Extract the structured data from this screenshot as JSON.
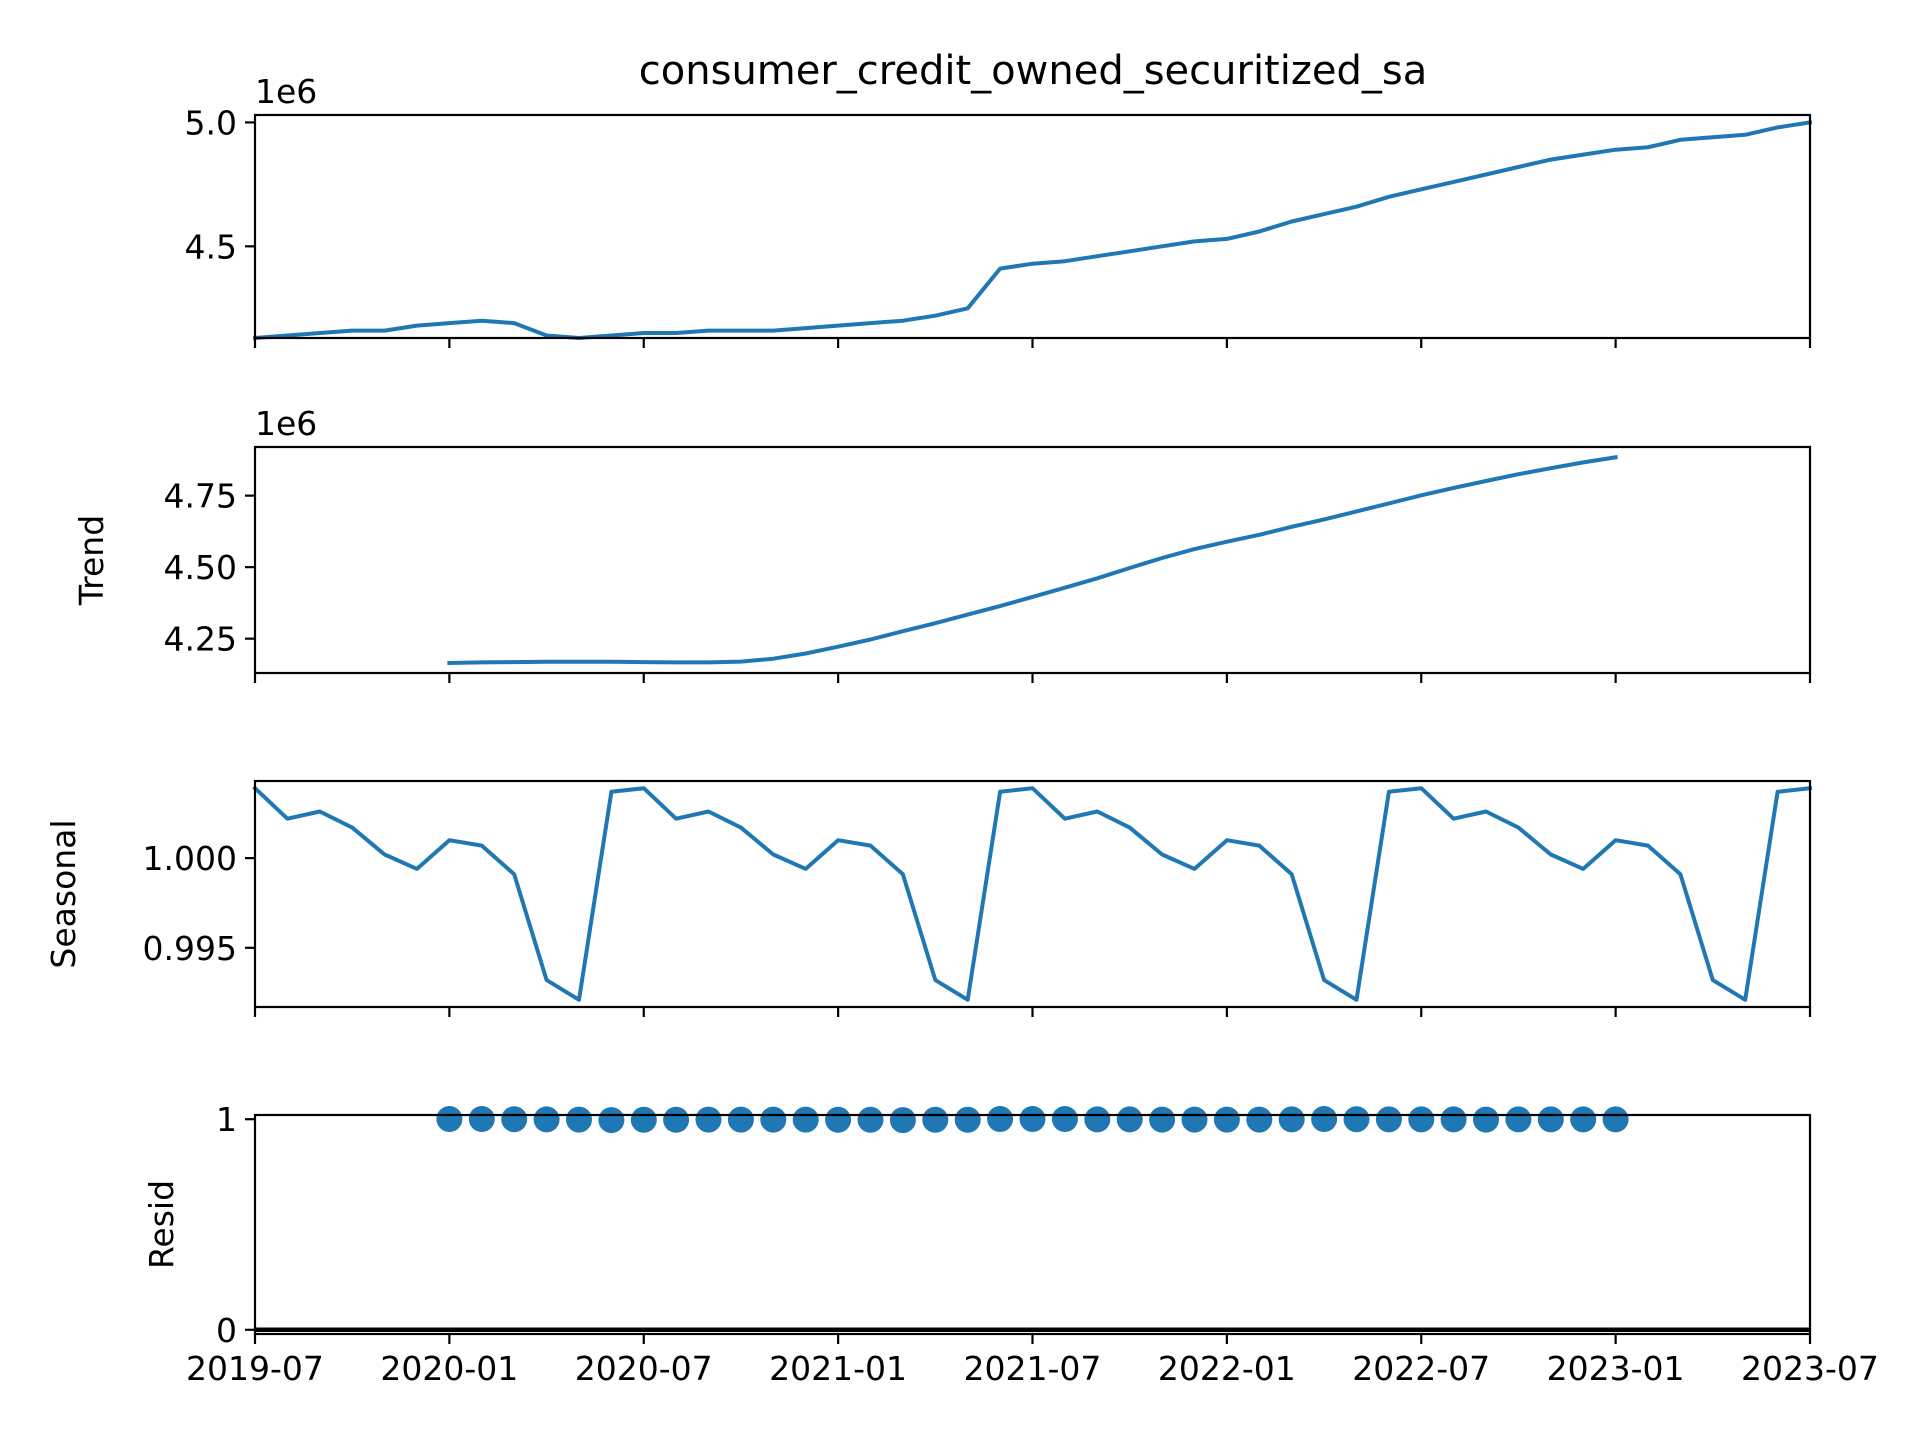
{
  "chart_data": {
    "type": "line",
    "title": "consumer_credit_owned_securitized_sa",
    "color": "#1f77b4",
    "x_range": [
      "2019-07",
      "2023-07"
    ],
    "x_tick_labels": [
      "2019-07",
      "2020-01",
      "2020-07",
      "2021-01",
      "2021-07",
      "2022-01",
      "2022-07",
      "2023-01",
      "2023-07"
    ],
    "x_dates": [
      "2019-07",
      "2019-08",
      "2019-09",
      "2019-10",
      "2019-11",
      "2019-12",
      "2020-01",
      "2020-02",
      "2020-03",
      "2020-04",
      "2020-05",
      "2020-06",
      "2020-07",
      "2020-08",
      "2020-09",
      "2020-10",
      "2020-11",
      "2020-12",
      "2021-01",
      "2021-02",
      "2021-03",
      "2021-04",
      "2021-05",
      "2021-06",
      "2021-07",
      "2021-08",
      "2021-09",
      "2021-10",
      "2021-11",
      "2021-12",
      "2022-01",
      "2022-02",
      "2022-03",
      "2022-04",
      "2022-05",
      "2022-06",
      "2022-07",
      "2022-08",
      "2022-09",
      "2022-10",
      "2022-11",
      "2022-12",
      "2023-01",
      "2023-02",
      "2023-03",
      "2023-04",
      "2023-05",
      "2023-06",
      "2023-07"
    ],
    "panels": [
      {
        "name": "observed",
        "ylabel": "",
        "offset_label": "1e6",
        "ylim": [
          4.13,
          5.03
        ],
        "ytick_values": [
          4.5,
          5.0
        ],
        "ytick_labels": [
          "4.5",
          "5.0"
        ],
        "kind": "line",
        "values": [
          4.13,
          4.14,
          4.15,
          4.16,
          4.16,
          4.18,
          4.19,
          4.2,
          4.19,
          4.14,
          4.13,
          4.14,
          4.15,
          4.15,
          4.16,
          4.16,
          4.16,
          4.17,
          4.18,
          4.19,
          4.2,
          4.22,
          4.25,
          4.41,
          4.43,
          4.44,
          4.46,
          4.48,
          4.5,
          4.52,
          4.53,
          4.56,
          4.6,
          4.63,
          4.66,
          4.7,
          4.73,
          4.76,
          4.79,
          4.82,
          4.85,
          4.87,
          4.89,
          4.9,
          4.93,
          4.94,
          4.95,
          4.98,
          5.0
        ]
      },
      {
        "name": "trend",
        "ylabel": "Trend",
        "offset_label": "1e6",
        "ylim": [
          4.13,
          4.92
        ],
        "ytick_values": [
          4.25,
          4.5,
          4.75
        ],
        "ytick_labels": [
          "4.25",
          "4.50",
          "4.75"
        ],
        "kind": "line",
        "values": [
          null,
          null,
          null,
          null,
          null,
          null,
          4.165,
          4.167,
          4.168,
          4.169,
          4.169,
          4.169,
          4.168,
          4.167,
          4.167,
          4.17,
          4.18,
          4.198,
          4.222,
          4.247,
          4.276,
          4.304,
          4.334,
          4.364,
          4.396,
          4.428,
          4.461,
          4.497,
          4.532,
          4.563,
          4.589,
          4.613,
          4.641,
          4.667,
          4.695,
          4.723,
          4.751,
          4.777,
          4.801,
          4.825,
          4.846,
          4.866,
          4.884,
          null,
          null,
          null,
          null,
          null,
          null
        ]
      },
      {
        "name": "seasonal",
        "ylabel": "Seasonal",
        "offset_label": "",
        "ylim": [
          0.9917,
          1.0043
        ],
        "ytick_values": [
          0.995,
          1.0
        ],
        "ytick_labels": [
          "0.995",
          "1.000"
        ],
        "kind": "line",
        "values": [
          1.0039,
          1.0022,
          1.0026,
          1.0017,
          1.0002,
          0.9994,
          1.001,
          1.0007,
          0.9991,
          0.9932,
          0.9921,
          1.0037,
          1.0039,
          1.0022,
          1.0026,
          1.0017,
          1.0002,
          0.9994,
          1.001,
          1.0007,
          0.9991,
          0.9932,
          0.9921,
          1.0037,
          1.0039,
          1.0022,
          1.0026,
          1.0017,
          1.0002,
          0.9994,
          1.001,
          1.0007,
          0.9991,
          0.9932,
          0.9921,
          1.0037,
          1.0039,
          1.0022,
          1.0026,
          1.0017,
          1.0002,
          0.9994,
          1.001,
          1.0007,
          0.9991,
          0.9932,
          0.9921,
          1.0037,
          1.0039
        ]
      },
      {
        "name": "resid",
        "ylabel": "Resid",
        "offset_label": "",
        "ylim": [
          -0.02,
          1.02
        ],
        "ytick_values": [
          0,
          1
        ],
        "ytick_labels": [
          "0",
          "1"
        ],
        "kind": "scatter",
        "baseline": 0,
        "values": [
          null,
          null,
          null,
          null,
          null,
          null,
          1.001,
          1.001,
          1.0,
          0.999,
          0.998,
          0.996,
          0.997,
          0.997,
          0.998,
          0.998,
          0.998,
          0.998,
          0.997,
          0.997,
          0.996,
          0.997,
          0.997,
          1.001,
          1.001,
          1.001,
          0.999,
          0.999,
          0.998,
          0.998,
          0.998,
          0.998,
          0.999,
          1.001,
          1.0,
          0.999,
          0.999,
          0.999,
          0.998,
          0.999,
          0.999,
          0.999,
          0.999,
          null,
          null,
          null,
          null,
          null,
          null
        ]
      }
    ]
  }
}
